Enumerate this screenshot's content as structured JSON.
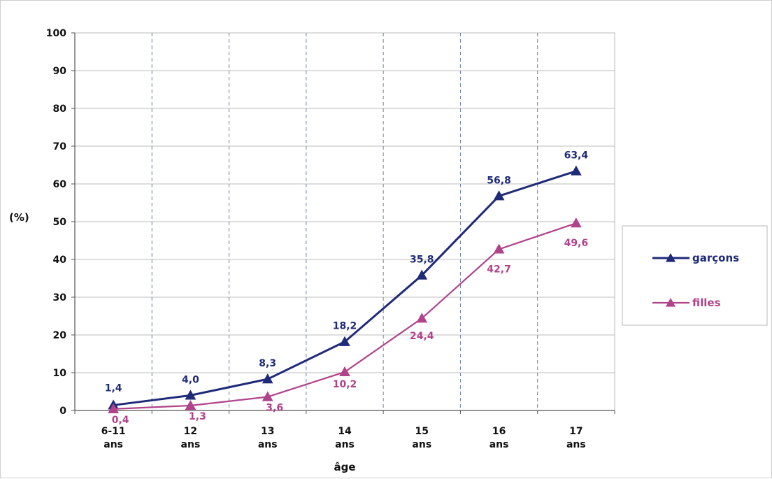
{
  "chart_data": {
    "type": "line",
    "title": "",
    "ylabel": "(%)",
    "xlabel": "âge",
    "ylim": [
      0,
      100
    ],
    "yticks": [
      "0",
      "10",
      "20",
      "30",
      "40",
      "50",
      "60",
      "70",
      "80",
      "90",
      "100"
    ],
    "categories": [
      [
        "6-11",
        "ans"
      ],
      [
        "12",
        "ans"
      ],
      [
        "13",
        "ans"
      ],
      [
        "14",
        "ans"
      ],
      [
        "15",
        "ans"
      ],
      [
        "16",
        "ans"
      ],
      [
        "17",
        "ans"
      ]
    ],
    "grid": "vertical dashed, horizontal solid",
    "legend_position": "right",
    "series": [
      {
        "name": "garçons",
        "color": "#1f2a78",
        "marker": "triangle",
        "values": [
          1.4,
          4.0,
          8.3,
          18.2,
          35.8,
          56.8,
          63.4
        ],
        "labels": [
          "1,4",
          "4,0",
          "8,3",
          "18,2",
          "35,8",
          "56,8",
          "63,4"
        ]
      },
      {
        "name": "filles",
        "color": "#b0438a",
        "marker": "triangle",
        "values": [
          0.4,
          1.3,
          3.6,
          10.2,
          24.4,
          42.7,
          49.6
        ],
        "labels": [
          "0,4",
          "1,3",
          "3,6",
          "10,2",
          "24,4",
          "42,7",
          "49,6"
        ]
      }
    ]
  }
}
